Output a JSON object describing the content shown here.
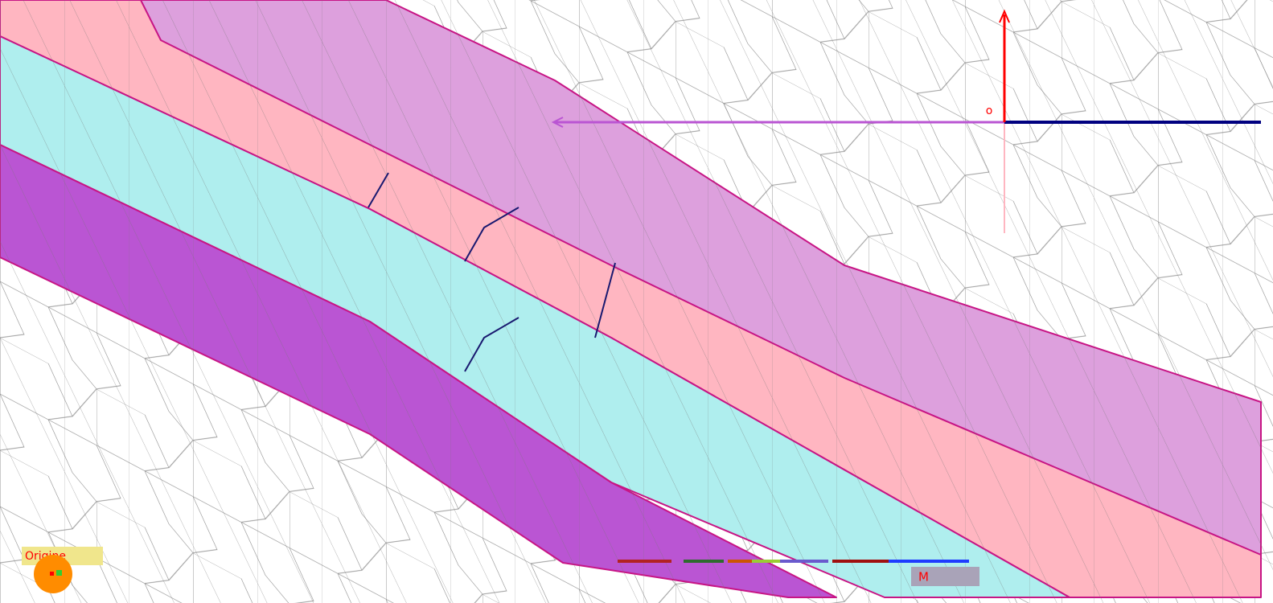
{
  "labels": {
    "origin_marker": "o",
    "origin_button": "Origine",
    "point": "M"
  }
}
